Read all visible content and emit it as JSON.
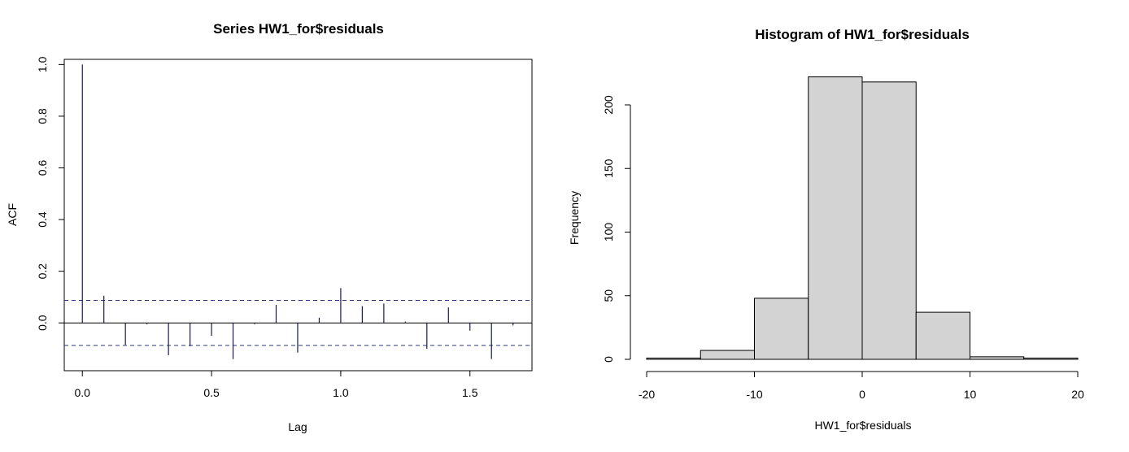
{
  "chart_data": [
    {
      "type": "bar",
      "subtype": "acf",
      "title": "Series  HW1_for$residuals",
      "xlabel": "Lag",
      "ylabel": "ACF",
      "xlim": [
        -0.07,
        1.74
      ],
      "ylim": [
        -0.185,
        1.02
      ],
      "xticks": [
        0.0,
        0.5,
        1.0,
        1.5
      ],
      "xtick_labels": [
        "0.0",
        "0.5",
        "1.0",
        "1.5"
      ],
      "yticks": [
        0.0,
        0.2,
        0.4,
        0.6,
        0.8,
        1.0
      ],
      "ytick_labels": [
        "0.0",
        "0.2",
        "0.4",
        "0.6",
        "0.8",
        "1.0"
      ],
      "confidence_bounds": [
        0.087,
        -0.087
      ],
      "lags": [
        0.0,
        0.0833,
        0.1667,
        0.25,
        0.3333,
        0.4167,
        0.5,
        0.5833,
        0.6667,
        0.75,
        0.8333,
        0.9167,
        1.0,
        1.0833,
        1.1667,
        1.25,
        1.3333,
        1.4167,
        1.5,
        1.5833,
        1.6667
      ],
      "values": [
        1.0,
        0.105,
        -0.085,
        -0.005,
        -0.125,
        -0.09,
        -0.05,
        -0.14,
        -0.005,
        0.07,
        -0.115,
        0.02,
        0.135,
        0.065,
        0.075,
        0.005,
        -0.1,
        0.06,
        -0.03,
        -0.14,
        -0.01
      ],
      "grid": false
    },
    {
      "type": "bar",
      "subtype": "histogram",
      "title": "Histogram of HW1_for$residuals",
      "xlabel": "HW1_for$residuals",
      "ylabel": "Frequency",
      "xlim": [
        -20,
        20
      ],
      "ylim": [
        0,
        225
      ],
      "xticks": [
        -20,
        -10,
        0,
        10,
        20
      ],
      "xtick_labels": [
        "-20",
        "-10",
        "0",
        "10",
        "20"
      ],
      "yticks": [
        0,
        50,
        100,
        150,
        200
      ],
      "ytick_labels": [
        "0",
        "50",
        "100",
        "150",
        "200"
      ],
      "bins": [
        [
          -20,
          -15
        ],
        [
          -15,
          -10
        ],
        [
          -10,
          -5
        ],
        [
          -5,
          0
        ],
        [
          0,
          5
        ],
        [
          5,
          10
        ],
        [
          10,
          15
        ],
        [
          15,
          20
        ]
      ],
      "values": [
        1,
        7,
        48,
        222,
        218,
        37,
        2,
        1
      ],
      "colors": {
        "bar_fill": "#d3d3d3",
        "bar_stroke": "#000000",
        "acf_line": "#1a1a4e",
        "ci_line": "#2a3a7a"
      },
      "grid": false
    }
  ]
}
